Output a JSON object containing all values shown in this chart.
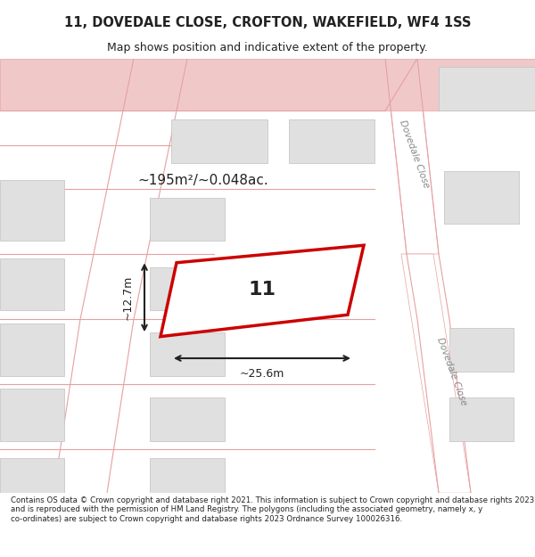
{
  "title_line1": "11, DOVEDALE CLOSE, CROFTON, WAKEFIELD, WF4 1SS",
  "title_line2": "Map shows position and indicative extent of the property.",
  "footer_text": "Contains OS data © Crown copyright and database right 2021. This information is subject to Crown copyright and database rights 2023 and is reproduced with the permission of HM Land Registry. The polygons (including the associated geometry, namely x, y co-ordinates) are subject to Crown copyright and database rights 2023 Ordnance Survey 100026316.",
  "area_label": "~195m²/~0.048ac.",
  "number_label": "11",
  "width_label": "~25.6m",
  "height_label": "~12.7m",
  "map_bg": "#f5f5f5",
  "road_color": "#f0c8c8",
  "building_color": "#e0e0e0",
  "highlight_color": "#cc0000",
  "road_line_color": "#e8a0a0",
  "text_color": "#222222",
  "street_label_color": "#888888",
  "footer_bg": "#ffffff",
  "title_bg": "#ffffff"
}
